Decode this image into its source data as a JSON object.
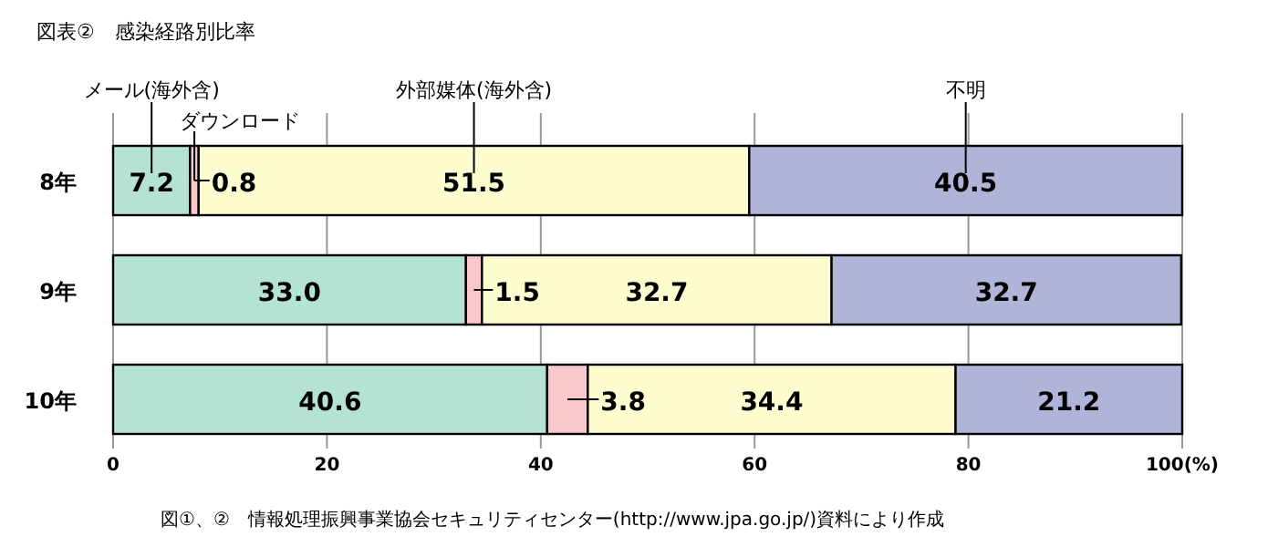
{
  "chart_data": {
    "type": "bar",
    "orientation": "horizontal",
    "stacked": true,
    "title": "図表②　感染経路別比率",
    "categories": [
      "8年",
      "9年",
      "10年"
    ],
    "series": [
      {
        "name": "メール(海外含)",
        "color": "#b4e2d4",
        "values": [
          7.2,
          33.0,
          40.6
        ],
        "value_labels": [
          "7.2",
          "33.0",
          "40.6"
        ]
      },
      {
        "name": "ダウンロード",
        "color": "#f8c8cc",
        "values": [
          0.8,
          1.5,
          3.8
        ],
        "value_labels": [
          "0.8",
          "1.5",
          "3.8"
        ]
      },
      {
        "name": "外部媒体(海外含)",
        "color": "#fdfdd0",
        "values": [
          51.5,
          32.7,
          34.4
        ],
        "value_labels": [
          "51.5",
          "32.7",
          "34.4"
        ]
      },
      {
        "name": "不明",
        "color": "#b0b4d8",
        "values": [
          40.5,
          32.7,
          21.2
        ],
        "value_labels": [
          "40.5",
          "32.7",
          "21.2"
        ]
      }
    ],
    "xlim": [
      0,
      100
    ],
    "xticks": [
      0,
      20,
      40,
      60,
      80,
      {
        "value": 100,
        "label": "100(%)"
      }
    ],
    "grid": "x",
    "annotations": [
      "図①、②　情報処理振興事業協会セキュリティセンター(http://www.jpa.go.jp/)資料により作成"
    ]
  }
}
